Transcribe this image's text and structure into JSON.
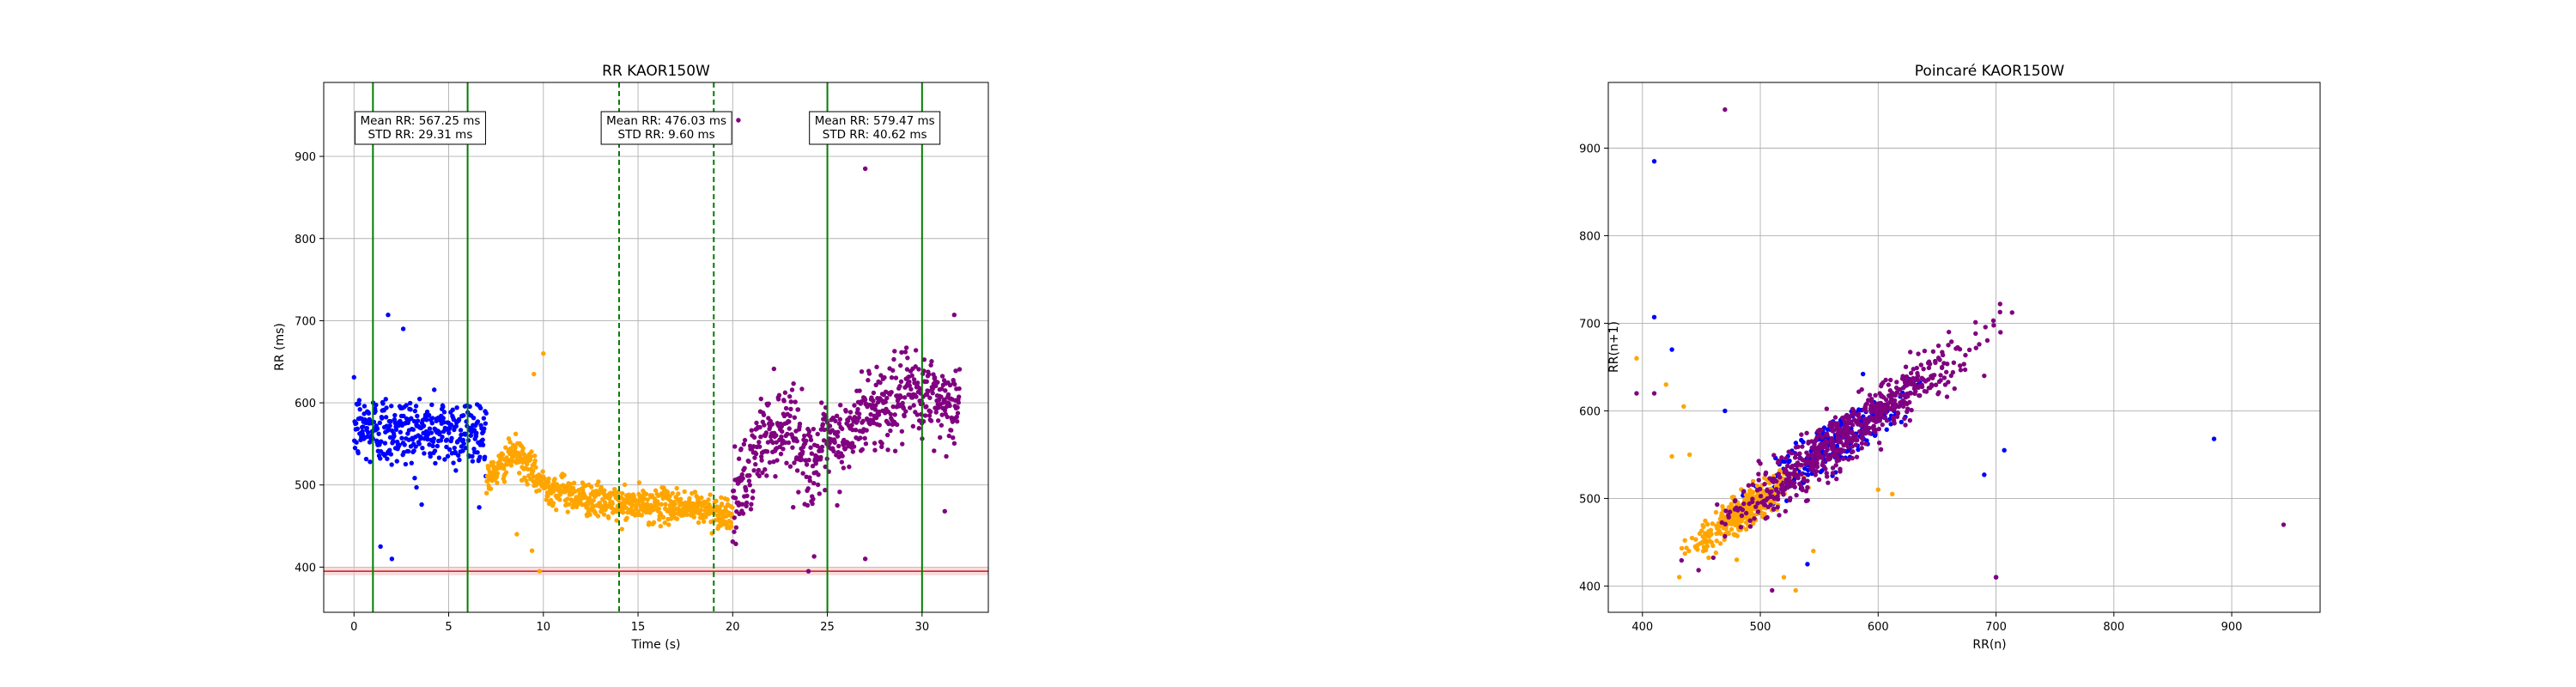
{
  "charts": [
    {
      "type": "scatter",
      "title": "RR KAOR150W",
      "xlabel": "Time (s)",
      "ylabel": "RR (ms)",
      "xlim": [
        -1.6,
        33.5
      ],
      "ylim": [
        345,
        990
      ],
      "xticks": [
        0,
        5,
        10,
        15,
        20,
        25,
        30
      ],
      "yticks": [
        400,
        500,
        600,
        700,
        800,
        900
      ],
      "grid": true,
      "hline": {
        "y": 395,
        "color": "#d62728"
      },
      "hband": [
        390,
        400
      ],
      "vlines": [
        {
          "x": 1.0,
          "style": "solid"
        },
        {
          "x": 6.0,
          "style": "solid"
        },
        {
          "x": 14.0,
          "style": "dashed"
        },
        {
          "x": 19.0,
          "style": "dashed"
        },
        {
          "x": 25.0,
          "style": "solid"
        },
        {
          "x": 30.0,
          "style": "solid"
        }
      ],
      "vline_color": "#008000",
      "annotations": [
        {
          "x": 3.5,
          "lines": [
            "Mean RR: 567.25 ms",
            "STD RR: 29.31 ms"
          ]
        },
        {
          "x": 16.5,
          "lines": [
            "Mean RR: 476.03 ms",
            "STD RR: 9.60 ms"
          ]
        },
        {
          "x": 27.5,
          "lines": [
            "Mean RR: 579.47 ms",
            "STD RR: 40.62 ms"
          ]
        }
      ],
      "series": [
        {
          "color": "#0000ff",
          "t_range": [
            0,
            7
          ],
          "segments": [
            [
              0,
              570
            ],
            [
              3,
              565
            ],
            [
              7,
              565
            ]
          ],
          "spread": 22,
          "count": 380,
          "outliers": [
            [
              1.4,
              425
            ],
            [
              2.0,
              410
            ],
            [
              3.3,
              497
            ],
            [
              1.8,
              707
            ],
            [
              2.6,
              690
            ]
          ]
        },
        {
          "color": "#ffa500",
          "t_range": [
            7,
            20
          ],
          "segments": [
            [
              7,
              505
            ],
            [
              8.5,
              540
            ],
            [
              10,
              500
            ],
            [
              12,
              485
            ],
            [
              14,
              475
            ],
            [
              17,
              475
            ],
            [
              20,
              465
            ]
          ],
          "spread": 10,
          "count": 700,
          "outliers": [
            [
              8.6,
              440
            ],
            [
              9.4,
              420
            ],
            [
              9.5,
              635
            ],
            [
              10.0,
              660
            ],
            [
              9.8,
              395
            ]
          ]
        },
        {
          "color": "#800080",
          "t_range": [
            20,
            32
          ],
          "segments": [
            [
              20,
              465
            ],
            [
              21.5,
              555
            ],
            [
              23,
              580
            ],
            [
              24,
              525
            ],
            [
              25,
              545
            ],
            [
              26,
              555
            ],
            [
              27,
              590
            ],
            [
              28,
              600
            ],
            [
              30,
              610
            ],
            [
              32,
              595
            ]
          ],
          "spread": 25,
          "count": 650,
          "outliers": [
            [
              20.3,
              944
            ],
            [
              27.0,
              885
            ],
            [
              24.0,
              395
            ],
            [
              24.3,
              413
            ],
            [
              27.0,
              410
            ],
            [
              31.2,
              468
            ],
            [
              31.7,
              707
            ]
          ]
        }
      ]
    },
    {
      "type": "scatter",
      "title": "Poincaré KAOR150W",
      "xlabel": "RR(n)",
      "ylabel": "RR(n+1)",
      "xlim": [
        371,
        975
      ],
      "ylim": [
        370,
        975
      ],
      "xticks": [
        400,
        500,
        600,
        700,
        800,
        900
      ],
      "yticks": [
        400,
        500,
        600,
        700,
        800,
        900
      ],
      "grid": true,
      "series": [
        {
          "color": "#0000ff",
          "center": [
            565,
            565
          ],
          "along": 30,
          "across": 8,
          "count": 250,
          "outliers": [
            [
              410,
              885
            ],
            [
              410,
              707
            ],
            [
              425,
              670
            ],
            [
              700,
              410
            ],
            [
              885,
              568
            ],
            [
              707,
              555
            ],
            [
              540,
              425
            ],
            [
              690,
              527
            ],
            [
              470,
              600
            ]
          ]
        },
        {
          "color": "#ffa500",
          "center": [
            485,
            485
          ],
          "along": 20,
          "across": 5,
          "count": 380,
          "outliers": [
            [
              395,
              660
            ],
            [
              420,
              630
            ],
            [
              425,
              548
            ],
            [
              440,
              550
            ],
            [
              435,
              605
            ],
            [
              530,
              395
            ],
            [
              520,
              410
            ],
            [
              545,
              440
            ],
            [
              600,
              510
            ],
            [
              612,
              505
            ],
            [
              480,
              430
            ]
          ]
        },
        {
          "color": "#800080",
          "center": [
            575,
            575
          ],
          "along": 48,
          "across": 8,
          "count": 650,
          "outliers": [
            [
              470,
              944
            ],
            [
              944,
              470
            ],
            [
              395,
              620
            ],
            [
              410,
              620
            ],
            [
              700,
              410
            ],
            [
              690,
              640
            ],
            [
              660,
              690
            ],
            [
              510,
              395
            ],
            [
              540,
              520
            ]
          ]
        }
      ]
    }
  ]
}
